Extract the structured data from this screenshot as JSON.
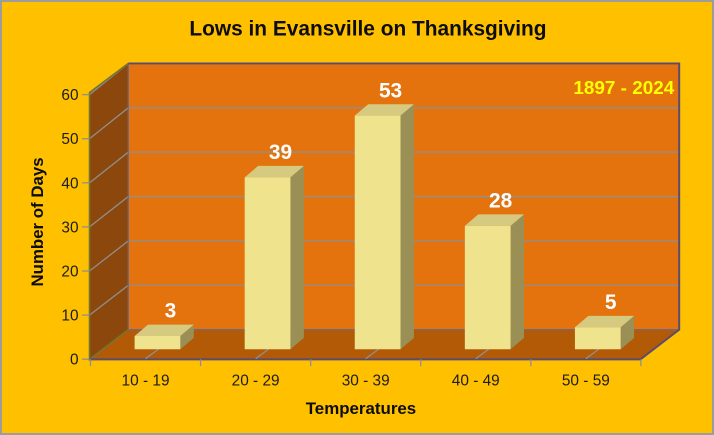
{
  "chart_data": {
    "type": "bar",
    "variant": "3d-column",
    "title": "Lows in Evansville on Thanksgiving",
    "period_label": "1897 - 2024",
    "xlabel": "Temperatures",
    "ylabel": "Number of Days",
    "categories": [
      "10 - 19",
      "20 - 29",
      "30 - 39",
      "40 - 49",
      "50 - 59"
    ],
    "values": [
      3,
      39,
      53,
      28,
      5
    ],
    "ylim": [
      0,
      60
    ],
    "ytick_step": 10,
    "yticks": [
      0,
      10,
      20,
      30,
      40,
      50,
      60
    ],
    "grid": true,
    "legend": "none",
    "colors": {
      "chart_background": "#FFC000",
      "back_wall": "#E4720D",
      "side_wall": "#8C470C",
      "floor": "#B35A07",
      "bar_front": "#EFE48D",
      "bar_top": "#D6CA80",
      "bar_side": "#9A9056",
      "plot_border": "#5B4A72",
      "wall_junction": "#756878",
      "wall_edge": "#767431",
      "gridline": "#8F8F8D",
      "tick": "#8F8F8D",
      "data_label": "#FFFFFF",
      "period_label_color": "#FFFF00"
    }
  }
}
